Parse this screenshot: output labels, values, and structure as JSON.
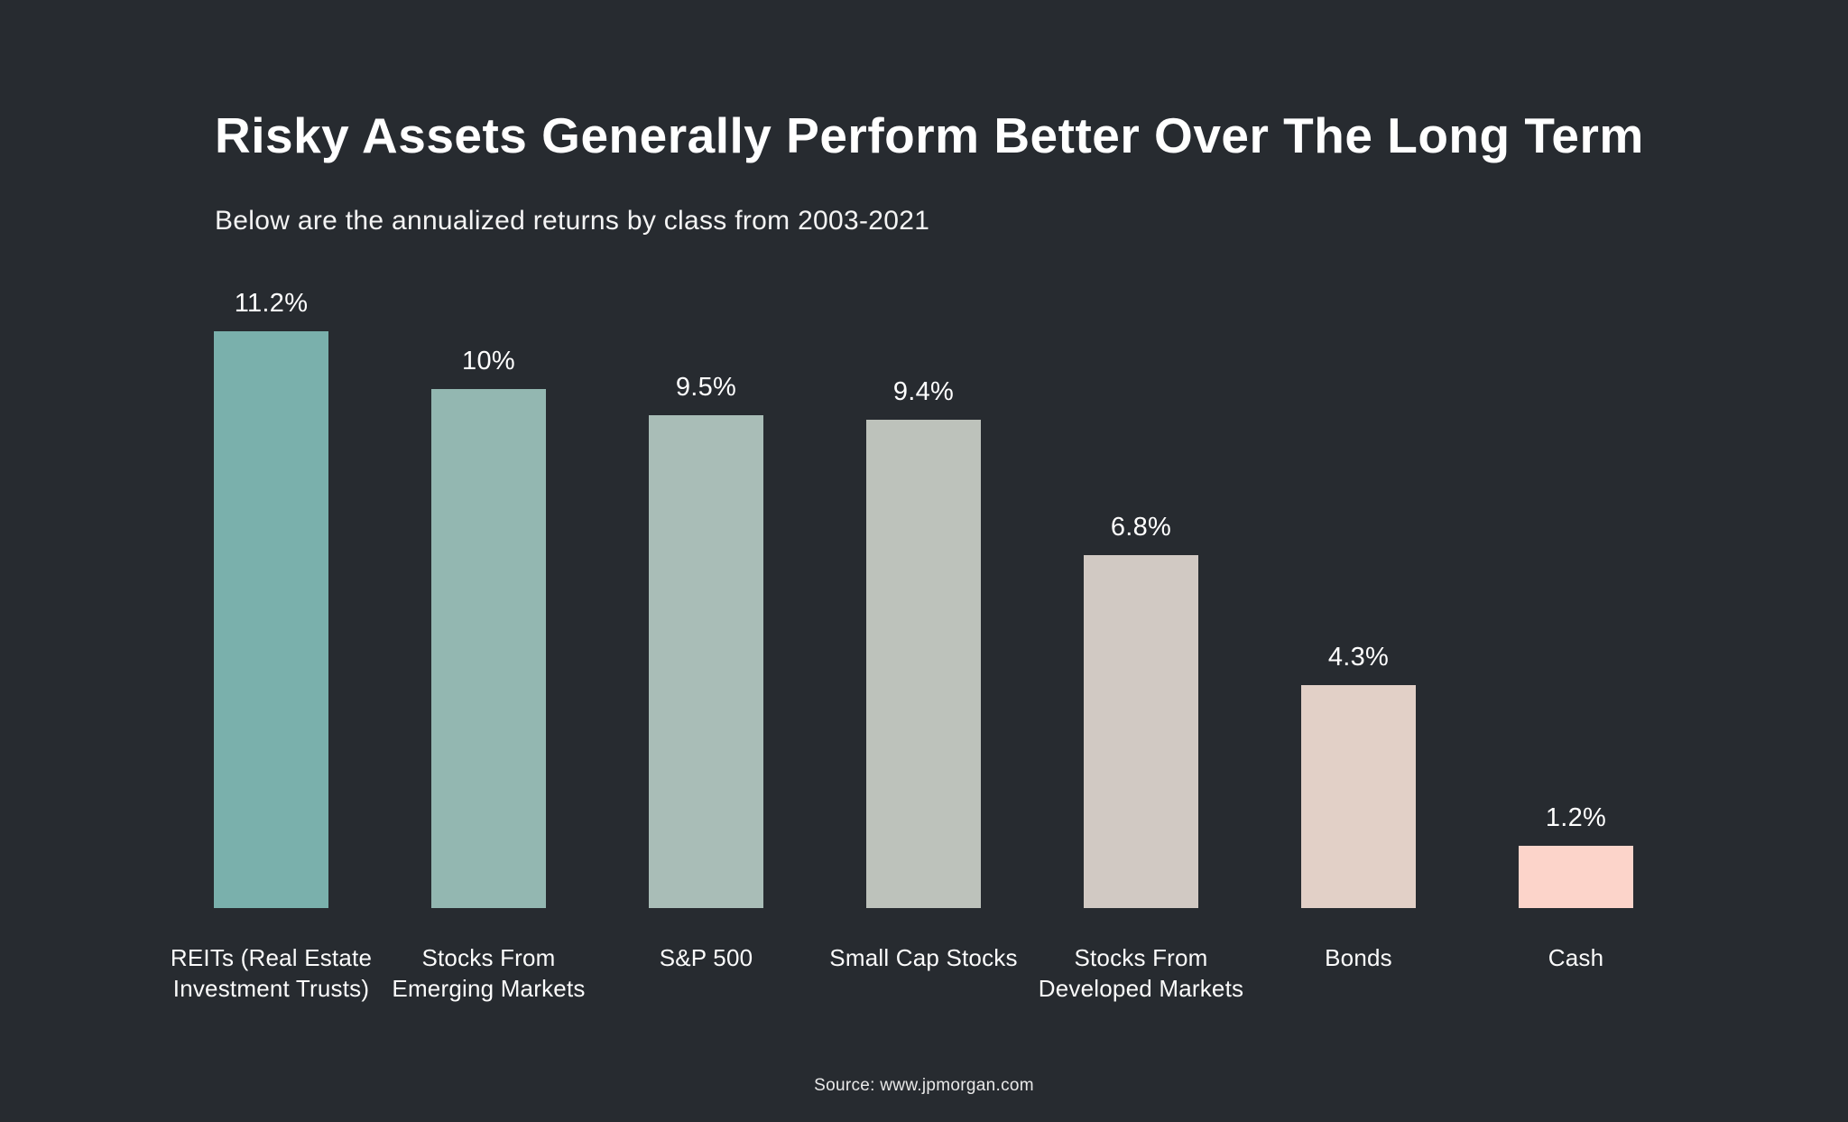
{
  "page": {
    "background_color": "#272b30",
    "text_color": "#ffffff"
  },
  "header": {
    "title": "Risky Assets Generally Perform Better Over The Long Term",
    "subtitle": "Below are the annualized returns by class from 2003-2021"
  },
  "footer": {
    "source": "Source: www.jpmorgan.com"
  },
  "chart_data": {
    "type": "bar",
    "title": "Risky Assets Generally Perform Better Over The Long Term",
    "subtitle": "Below are the annualized returns by class from 2003-2021",
    "categories": [
      "REITs (Real Estate Investment Trusts)",
      "Stocks From Emerging Markets",
      "S&P 500",
      "Small Cap Stocks",
      "Stocks From Developed Markets",
      "Bonds",
      "Cash"
    ],
    "values": [
      11.2,
      10,
      9.5,
      9.4,
      6.8,
      4.3,
      1.2
    ],
    "value_labels": [
      "11.2%",
      "10%",
      "9.5%",
      "9.4%",
      "6.8%",
      "4.3%",
      "1.2%"
    ],
    "bar_colors": [
      "#7ab0ac",
      "#93b7b1",
      "#a9bdb7",
      "#bdc2bb",
      "#d1c9c3",
      "#e2d0c7",
      "#fcd4ca"
    ],
    "unit": "%",
    "xlabel": "",
    "ylabel": "",
    "ylim": [
      0,
      11.2
    ],
    "grid": false,
    "legend_position": "none",
    "source": "Source: www.jpmorgan.com",
    "pixels_per_unit": 57.5
  }
}
